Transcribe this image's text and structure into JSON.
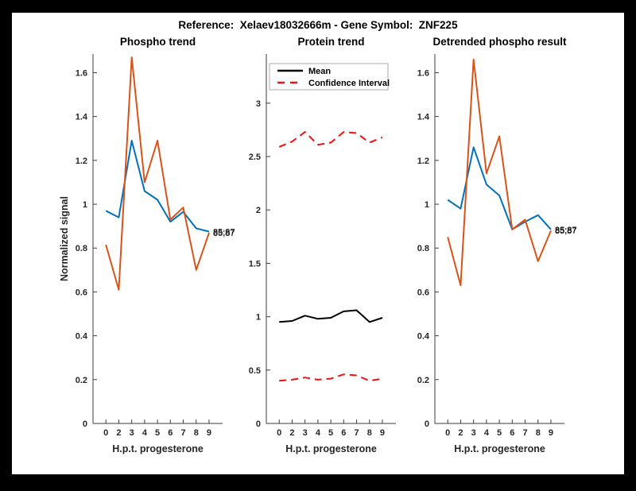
{
  "figure_title": "Reference:  Xelaev18032666m - Gene Symbol:  ZNF225",
  "colors": {
    "blue": "#0072BD",
    "orange": "#D95319",
    "red": "#F01010",
    "black": "#000000",
    "axis_line": "#3d3d3d",
    "tick_label": "#262626",
    "legend_border": "#aaaaaa",
    "background": "#ffffff",
    "frame": "#000000"
  },
  "chart_data": [
    {
      "type": "line",
      "title": "Phospho trend",
      "xlabel": "H.p.t. progesterone",
      "ylabel": "Normalized signal",
      "categories": [
        "0",
        "2",
        "3",
        "4",
        "5",
        "6",
        "7",
        "8",
        "9"
      ],
      "ylim": [
        0,
        1.685
      ],
      "yticks": [
        0,
        0.2,
        0.4,
        0.6,
        0.8,
        1,
        1.2,
        1.4,
        1.6
      ],
      "grid": false,
      "series": [
        {
          "name": "phospho-replicate-1",
          "color": "blue",
          "style": "solid",
          "values": [
            0.97,
            0.94,
            1.29,
            1.06,
            1.02,
            0.92,
            0.965,
            0.89,
            0.875
          ],
          "end_label": "85;87"
        },
        {
          "name": "phospho-replicate-2",
          "color": "orange",
          "style": "solid",
          "values": [
            0.815,
            0.61,
            1.67,
            1.1,
            1.29,
            0.93,
            0.985,
            0.7,
            0.87
          ],
          "end_label": "85;87"
        }
      ]
    },
    {
      "type": "line",
      "title": "Protein trend",
      "xlabel": "H.p.t. progesterone",
      "ylabel": "",
      "categories": [
        "0",
        "2",
        "3",
        "4",
        "5",
        "6",
        "7",
        "8",
        "9"
      ],
      "ylim": [
        0,
        3.46
      ],
      "yticks": [
        0,
        0.5,
        1,
        1.5,
        2,
        2.5,
        3
      ],
      "grid": false,
      "legend": {
        "position": "top",
        "entries": [
          {
            "label": "Mean",
            "color": "black",
            "style": "solid"
          },
          {
            "label": "Confidence Interval",
            "color": "red",
            "style": "dashed"
          }
        ]
      },
      "series": [
        {
          "name": "mean",
          "color": "black",
          "style": "solid",
          "values": [
            0.95,
            0.96,
            1.01,
            0.98,
            0.99,
            1.05,
            1.06,
            0.95,
            0.99
          ]
        },
        {
          "name": "confidence-upper",
          "color": "red",
          "style": "dashed",
          "values": [
            2.59,
            2.64,
            2.73,
            2.61,
            2.63,
            2.73,
            2.72,
            2.63,
            2.68
          ]
        },
        {
          "name": "confidence-lower",
          "color": "red",
          "style": "dashed",
          "values": [
            0.4,
            0.41,
            0.43,
            0.41,
            0.42,
            0.46,
            0.45,
            0.4,
            0.42
          ]
        }
      ]
    },
    {
      "type": "line",
      "title": "Detrended phospho result",
      "xlabel": "H.p.t. progesterone",
      "ylabel": "",
      "categories": [
        "0",
        "2",
        "3",
        "4",
        "5",
        "6",
        "7",
        "8",
        "9"
      ],
      "ylim": [
        0,
        1.685
      ],
      "yticks": [
        0,
        0.2,
        0.4,
        0.6,
        0.8,
        1,
        1.2,
        1.4,
        1.6
      ],
      "grid": false,
      "series": [
        {
          "name": "detrended-replicate-1",
          "color": "blue",
          "style": "solid",
          "values": [
            1.02,
            0.98,
            1.26,
            1.09,
            1.04,
            0.885,
            0.92,
            0.95,
            0.885
          ],
          "end_label": "85;87"
        },
        {
          "name": "detrended-replicate-2",
          "color": "orange",
          "style": "solid",
          "values": [
            0.85,
            0.63,
            1.66,
            1.14,
            1.31,
            0.885,
            0.93,
            0.74,
            0.88
          ],
          "end_label": "85;87"
        }
      ]
    }
  ]
}
